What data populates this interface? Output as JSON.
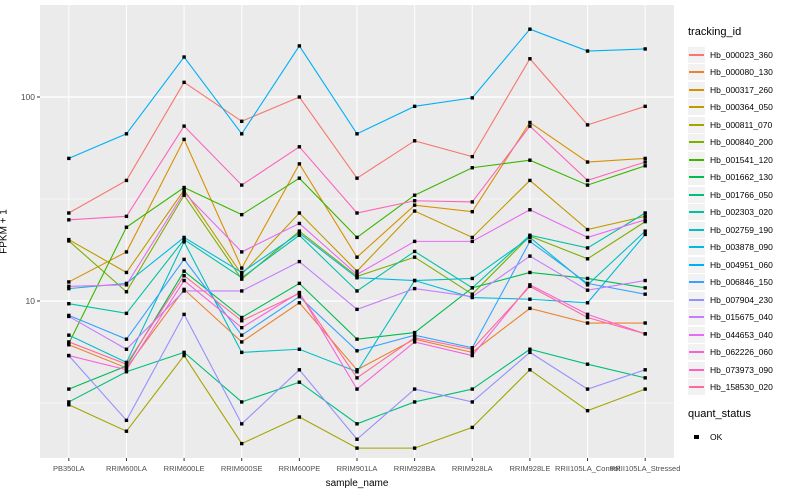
{
  "chart_data": {
    "type": "line",
    "title": "",
    "xlabel": "sample_name",
    "ylabel": "FPKM + 1",
    "y_scale": "log10",
    "ylim": [
      1.7,
      260
    ],
    "y_ticks": [
      10,
      100
    ],
    "y_minor_ticks": [
      3.162,
      31.62
    ],
    "grid": true,
    "legend_position": "right",
    "point_marker": "black-square",
    "categories": [
      "PB350LA",
      "RRIM600LA",
      "RRIM600LE",
      "RRIM600SE",
      "RRIM600PE",
      "RRIM901LA",
      "RRIM928BA",
      "RRIM928LA",
      "RRIM928LE",
      "RRII105LA_Control",
      "RRII105LA_Stressed"
    ],
    "legend_title": "tracking_id",
    "quant_legend_title": "quant_status",
    "quant_legend_value": "OK",
    "panel_bg": "#EBEBEB",
    "grid_color": "#FFFFFF",
    "tick_text_color": "#4D4D4D",
    "series": [
      {
        "name": "Hb_000023_360",
        "color": "#F8766D",
        "values": [
          27,
          39,
          118,
          76,
          100,
          40,
          61,
          51,
          154,
          73,
          90
        ]
      },
      {
        "name": "Hb_000080_130",
        "color": "#EA8331",
        "values": [
          6.1,
          4.7,
          11.4,
          6.3,
          9.8,
          4.6,
          6.5,
          5.6,
          9.2,
          7.8,
          7.8
        ]
      },
      {
        "name": "Hb_000317_260",
        "color": "#D89000",
        "values": [
          12.4,
          17.4,
          62,
          14.5,
          47,
          16.4,
          29.5,
          27.4,
          75,
          48,
          50
        ]
      },
      {
        "name": "Hb_000364_050",
        "color": "#C09B00",
        "values": [
          20,
          13.8,
          35,
          13.5,
          27,
          14,
          27.6,
          20.5,
          39,
          22.4,
          26
        ]
      },
      {
        "name": "Hb_000811_070",
        "color": "#A3A500",
        "values": [
          3.1,
          2.3,
          5.4,
          2.0,
          2.7,
          1.9,
          1.9,
          2.4,
          4.6,
          2.9,
          3.7
        ]
      },
      {
        "name": "Hb_000840_200",
        "color": "#7CAE00",
        "values": [
          19.7,
          11.1,
          33,
          12.8,
          22,
          13.2,
          16.4,
          10.8,
          20.8,
          16.1,
          24.5
        ]
      },
      {
        "name": "Hb_001541_120",
        "color": "#39B600",
        "values": [
          6.2,
          23,
          36,
          26.5,
          40,
          20.5,
          33,
          45,
          49,
          37,
          46
        ]
      },
      {
        "name": "Hb_001662_130",
        "color": "#00BB4E",
        "values": [
          3.7,
          4.8,
          14,
          8.3,
          12.2,
          6.5,
          7.0,
          11.6,
          13.8,
          12.9,
          11.6
        ]
      },
      {
        "name": "Hb_001766_050",
        "color": "#00BF7D",
        "values": [
          3.2,
          4.5,
          5.6,
          3.2,
          4.0,
          2.5,
          3.2,
          3.7,
          5.8,
          4.9,
          4.2
        ]
      },
      {
        "name": "Hb_002303_020",
        "color": "#00C1A3",
        "values": [
          9.7,
          8.7,
          20,
          13,
          21,
          11.2,
          17.5,
          11.6,
          21,
          18.2,
          27
        ]
      },
      {
        "name": "Hb_002759_190",
        "color": "#00BFC4",
        "values": [
          6.8,
          5.0,
          19.5,
          5.6,
          5.8,
          4.5,
          12.6,
          12.9,
          20.5,
          12,
          22
        ]
      },
      {
        "name": "Hb_003878_090",
        "color": "#00BAE0",
        "values": [
          11.5,
          12.2,
          20.5,
          13.8,
          21.5,
          13,
          12.6,
          10.4,
          10.2,
          9.8,
          21.2
        ]
      },
      {
        "name": "Hb_004951_060",
        "color": "#00B0F6",
        "values": [
          50,
          66,
          157,
          66,
          178,
          66,
          90,
          99,
          215,
          168,
          172
        ]
      },
      {
        "name": "Hb_006846_150",
        "color": "#35A2FF",
        "values": [
          8.5,
          6.5,
          16,
          6.8,
          10.5,
          5.7,
          6.8,
          5.9,
          19.6,
          12.2,
          10.8
        ]
      },
      {
        "name": "Hb_007904_230",
        "color": "#9590FF",
        "values": [
          5.4,
          2.6,
          8.6,
          2.5,
          4.6,
          2.1,
          3.7,
          3.2,
          5.6,
          3.7,
          4.6
        ]
      },
      {
        "name": "Hb_015675_040",
        "color": "#C77CFF",
        "values": [
          8.4,
          5.8,
          11.2,
          11.2,
          15.6,
          9.1,
          11.5,
          10.5,
          16.6,
          11.3,
          12.6
        ]
      },
      {
        "name": "Hb_044653_040",
        "color": "#E76BF3",
        "values": [
          11.8,
          12.0,
          34,
          17.4,
          24,
          13.5,
          19.6,
          19.6,
          28,
          20.5,
          25
        ]
      },
      {
        "name": "Hb_062226_060",
        "color": "#FA62DB",
        "values": [
          5.4,
          4.6,
          12.6,
          7.4,
          11,
          3.7,
          6.3,
          5.4,
          12,
          8.6,
          6.9
        ]
      },
      {
        "name": "Hb_073973_090",
        "color": "#FF62BC",
        "values": [
          25,
          26,
          72,
          37,
          57,
          27,
          31,
          30.6,
          72,
          39,
          48
        ]
      },
      {
        "name": "Hb_158530_020",
        "color": "#FF6A98",
        "values": [
          6.3,
          4.9,
          13.3,
          8.0,
          10.9,
          4.2,
          6.6,
          5.8,
          11.8,
          8.3,
          6.9
        ]
      }
    ]
  }
}
